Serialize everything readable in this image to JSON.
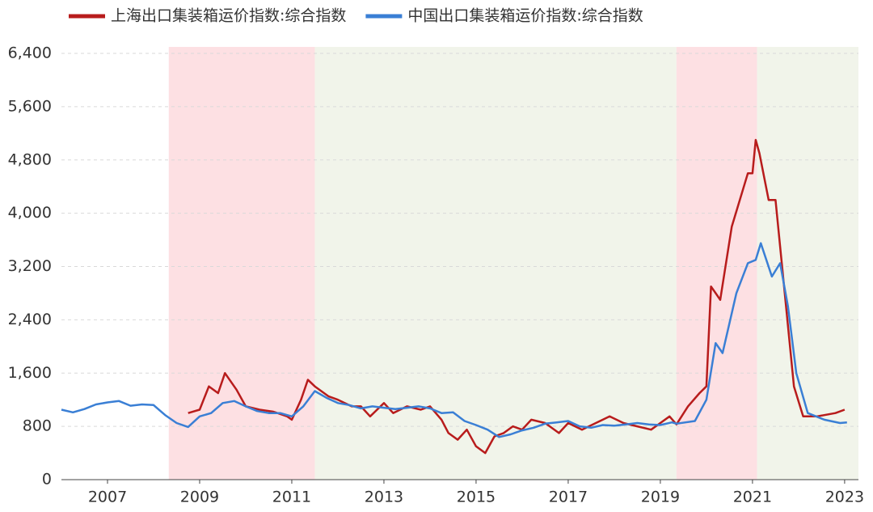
{
  "chart_data": {
    "type": "line",
    "xlim": [
      2006,
      2023.3
    ],
    "xticks": [
      2007,
      2009,
      2011,
      2013,
      2015,
      2017,
      2019,
      2021,
      2023
    ],
    "ylim": [
      0,
      6400
    ],
    "yticks": [
      0,
      800,
      {
        "value": 1600,
        "label": "1,600"
      },
      {
        "value": 2400,
        "label": "2,400"
      },
      {
        "value": 3200,
        "label": "3,200"
      },
      {
        "value": 4000,
        "label": "4,000"
      },
      {
        "value": 4800,
        "label": "4,800"
      },
      {
        "value": 5600,
        "label": "5,600"
      },
      {
        "value": 6400,
        "label": "6,400"
      }
    ],
    "grid": true,
    "regions": [
      {
        "start": 2008.33,
        "end": 2011.5,
        "color": "#fde0e3"
      },
      {
        "start": 2011.5,
        "end": 2019.35,
        "color": "#f1f4ea"
      },
      {
        "start": 2019.35,
        "end": 2021.1,
        "color": "#fde0e3"
      },
      {
        "start": 2021.1,
        "end": 2023.3,
        "color": "#f1f4ea"
      }
    ],
    "series": [
      {
        "name": "上海出口集装箱运价指数:综合指数",
        "color": "#b81c1c",
        "x": [
          2008.75,
          2009.0,
          2009.2,
          2009.4,
          2009.55,
          2009.8,
          2010.0,
          2010.3,
          2010.6,
          2010.9,
          2011.0,
          2011.2,
          2011.35,
          2011.5,
          2011.8,
          2012.0,
          2012.3,
          2012.5,
          2012.7,
          2013.0,
          2013.2,
          2013.5,
          2013.8,
          2014.0,
          2014.25,
          2014.4,
          2014.6,
          2014.8,
          2015.0,
          2015.2,
          2015.4,
          2015.6,
          2015.8,
          2016.0,
          2016.2,
          2016.5,
          2016.8,
          2017.0,
          2017.3,
          2017.6,
          2017.9,
          2018.2,
          2018.5,
          2018.8,
          2019.0,
          2019.2,
          2019.35,
          2019.6,
          2019.85,
          2020.0,
          2020.1,
          2020.2,
          2020.3,
          2020.55,
          2020.9,
          2021.0,
          2021.07,
          2021.15,
          2021.35,
          2021.5,
          2021.7,
          2021.9,
          2022.1,
          2022.4,
          2022.8,
          2023.0
        ],
        "values": [
          1000,
          1050,
          1400,
          1300,
          1600,
          1350,
          1100,
          1050,
          1020,
          950,
          900,
          1200,
          1500,
          1400,
          1250,
          1200,
          1100,
          1100,
          950,
          1150,
          1000,
          1100,
          1050,
          1100,
          900,
          700,
          600,
          750,
          500,
          400,
          650,
          700,
          800,
          750,
          900,
          850,
          700,
          850,
          750,
          850,
          950,
          850,
          800,
          750,
          850,
          950,
          830,
          1100,
          1300,
          1400,
          2900,
          2800,
          2700,
          3800,
          4600,
          4600,
          5100,
          4900,
          4200,
          4200,
          2800,
          1400,
          950,
          950,
          1000,
          1050
        ]
      },
      {
        "name": "中国出口集装箱运价指数:综合指数",
        "color": "#3a7fd5",
        "x": [
          2006.0,
          2006.25,
          2006.5,
          2006.75,
          2007.0,
          2007.25,
          2007.5,
          2007.75,
          2008.0,
          2008.25,
          2008.5,
          2008.75,
          2009.0,
          2009.25,
          2009.5,
          2009.75,
          2010.0,
          2010.25,
          2010.5,
          2010.75,
          2011.0,
          2011.25,
          2011.5,
          2011.75,
          2012.0,
          2012.25,
          2012.5,
          2012.75,
          2013.0,
          2013.25,
          2013.5,
          2013.75,
          2014.0,
          2014.25,
          2014.5,
          2014.75,
          2015.0,
          2015.25,
          2015.5,
          2015.75,
          2016.0,
          2016.25,
          2016.5,
          2016.75,
          2017.0,
          2017.25,
          2017.5,
          2017.75,
          2018.0,
          2018.25,
          2018.5,
          2018.75,
          2019.0,
          2019.25,
          2019.35,
          2019.75,
          2020.0,
          2020.2,
          2020.35,
          2020.65,
          2020.9,
          2021.07,
          2021.18,
          2021.42,
          2021.6,
          2021.77,
          2021.95,
          2022.2,
          2022.56,
          2022.9,
          2023.05
        ],
        "values": [
          1050,
          1010,
          1060,
          1130,
          1160,
          1180,
          1110,
          1130,
          1120,
          970,
          850,
          790,
          950,
          1000,
          1150,
          1180,
          1100,
          1030,
          1000,
          1000,
          950,
          1100,
          1330,
          1230,
          1150,
          1120,
          1070,
          1100,
          1080,
          1060,
          1080,
          1100,
          1070,
          1000,
          1010,
          880,
          820,
          750,
          640,
          680,
          740,
          780,
          840,
          860,
          880,
          800,
          780,
          820,
          810,
          830,
          850,
          830,
          820,
          860,
          840,
          880,
          1200,
          2050,
          1900,
          2800,
          3250,
          3300,
          3550,
          3050,
          3250,
          2600,
          1600,
          1000,
          900,
          850,
          860
        ]
      }
    ]
  }
}
